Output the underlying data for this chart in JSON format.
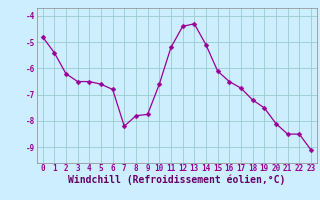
{
  "x": [
    0,
    1,
    2,
    3,
    4,
    5,
    6,
    7,
    8,
    9,
    10,
    11,
    12,
    13,
    14,
    15,
    16,
    17,
    18,
    19,
    20,
    21,
    22,
    23
  ],
  "y": [
    -4.8,
    -5.4,
    -6.2,
    -6.5,
    -6.5,
    -6.6,
    -6.8,
    -8.2,
    -7.8,
    -7.75,
    -6.6,
    -5.2,
    -4.4,
    -4.3,
    -5.1,
    -6.1,
    -6.5,
    -6.75,
    -7.2,
    -7.5,
    -8.1,
    -8.5,
    -8.5,
    -9.1
  ],
  "line_color": "#990099",
  "marker": "D",
  "marker_size": 2.5,
  "bg_color": "#cceeff",
  "grid_color": "#99cccc",
  "xlabel": "Windchill (Refroidissement éolien,°C)",
  "xlabel_color": "#660066",
  "tick_color": "#990099",
  "ylim": [
    -9.6,
    -3.7
  ],
  "xlim": [
    -0.5,
    23.5
  ],
  "yticks": [
    -9,
    -8,
    -7,
    -6,
    -5,
    -4
  ],
  "xticks": [
    0,
    1,
    2,
    3,
    4,
    5,
    6,
    7,
    8,
    9,
    10,
    11,
    12,
    13,
    14,
    15,
    16,
    17,
    18,
    19,
    20,
    21,
    22,
    23
  ],
  "tick_fontsize": 5.5,
  "xlabel_fontsize": 7.0,
  "spine_color": "#888888"
}
